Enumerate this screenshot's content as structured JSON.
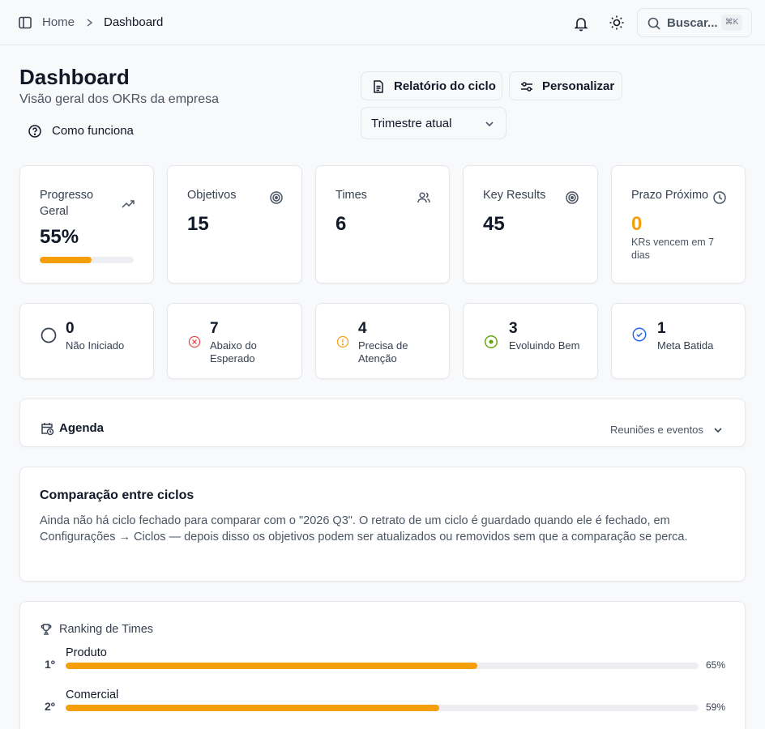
{
  "breadcrumb": {
    "home": "Home",
    "current": "Dashboard"
  },
  "search": {
    "label": "Buscar...",
    "shortcut": "⌘K"
  },
  "header": {
    "title": "Dashboard",
    "subtitle": "Visão geral dos OKRs da empresa",
    "how_it_works": "Como funciona",
    "report_button": "Relatório do ciclo",
    "customize_button": "Personalizar",
    "period_select": "Trimestre atual"
  },
  "stats": {
    "progress": {
      "label": "Progresso Geral",
      "value": "55%",
      "progress_fraction": 0.55
    },
    "objectives": {
      "label": "Objetivos",
      "value": "15"
    },
    "teams": {
      "label": "Times",
      "value": "6"
    },
    "key_results": {
      "label": "Key Results",
      "value": "45"
    },
    "deadline": {
      "label": "Prazo Próximo",
      "value": "0",
      "note": "KRs vencem em 7 dias"
    }
  },
  "status": {
    "not_started": {
      "value": "0",
      "label": "Não Iniciado",
      "color": "#374151"
    },
    "below": {
      "value": "7",
      "label": "Abaixo do Esperado",
      "color": "#ef4444"
    },
    "attention": {
      "value": "4",
      "label": "Precisa de Atenção",
      "color": "#f59e0b"
    },
    "evolving": {
      "value": "3",
      "label": "Evoluindo Bem",
      "color": "#65a30d"
    },
    "achieved": {
      "value": "1",
      "label": "Meta Batida",
      "color": "#2563eb"
    }
  },
  "agenda": {
    "title": "Agenda",
    "filter": "Reuniões e eventos"
  },
  "comparison": {
    "title": "Comparação entre ciclos",
    "text": "Ainda não há ciclo fechado para comparar com o \"2026 Q3\". O retrato de um ciclo é guardado quando ele é fechado, em Configurações → Ciclos — depois disso os objetivos podem ser atualizados ou removidos sem que a comparação se perca."
  },
  "ranking": {
    "title": "Ranking de Times",
    "teams": [
      {
        "position": "1º",
        "name": "Produto",
        "percent": "65%",
        "value": 65
      },
      {
        "position": "2º",
        "name": "Comercial",
        "percent": "59%",
        "value": 59
      }
    ]
  },
  "colors": {
    "accent": "#f59e0b",
    "text": "#111827",
    "muted": "#4b5563"
  }
}
